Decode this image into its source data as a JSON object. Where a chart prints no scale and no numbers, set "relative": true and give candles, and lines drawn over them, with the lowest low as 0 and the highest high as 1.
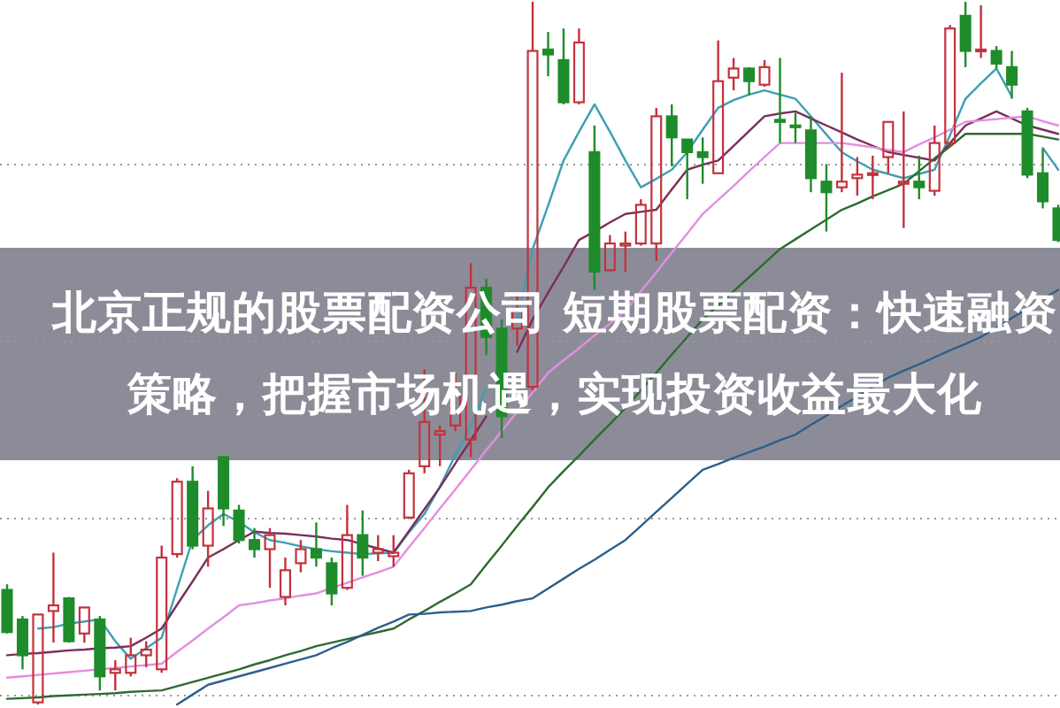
{
  "chart_data": {
    "type": "candlestick",
    "title": "北京正规的股票配资公司 短期股票配资：快速融资策略，把握市场机遇，实现投资收益最大化",
    "relative": true,
    "tick_labels": false,
    "grid": "y",
    "categories": [
      null,
      null,
      null,
      null,
      null,
      null,
      null,
      null,
      null,
      null,
      null,
      null,
      null,
      null,
      null,
      null,
      null,
      null,
      null,
      null,
      null,
      null,
      null,
      null,
      null,
      null,
      null,
      null,
      null,
      null,
      null,
      null,
      null,
      null,
      null,
      null,
      null,
      null,
      null,
      null,
      null,
      null,
      null,
      null,
      null,
      null,
      null,
      null,
      null,
      null,
      null,
      null,
      null,
      null,
      null,
      null,
      null,
      null,
      null,
      null,
      null,
      null,
      null,
      null,
      null,
      null,
      null,
      null,
      null
    ],
    "ohlc": [
      [
        0.163,
        0.171,
        0.101,
        0.103
      ],
      [
        0.121,
        0.126,
        0.05,
        0.07
      ],
      [
        0.003,
        0.128,
        0,
        0.128
      ],
      [
        0.133,
        0.216,
        0.088,
        0.141
      ],
      [
        0.151,
        0.153,
        0.088,
        0.09
      ],
      [
        0.101,
        0.138,
        0.088,
        0.138
      ],
      [
        0.121,
        0.126,
        0.02,
        0.04
      ],
      [
        0.045,
        0.063,
        0.02,
        0.05
      ],
      [
        0.045,
        0.095,
        0.04,
        0.07
      ],
      [
        0.07,
        0.09,
        0.053,
        0.078
      ],
      [
        0.05,
        0.226,
        0.045,
        0.209
      ],
      [
        0.214,
        0.322,
        0.209,
        0.317
      ],
      [
        0.317,
        0.339,
        0.221,
        0.226
      ],
      [
        0.226,
        0.304,
        0.196,
        0.279
      ],
      [
        0.352,
        0.354,
        0.254,
        0.279
      ],
      [
        0.276,
        0.284,
        0.229,
        0.234
      ],
      [
        0.234,
        0.251,
        0.209,
        0.221
      ],
      [
        0.221,
        0.251,
        0.166,
        0.241
      ],
      [
        0.153,
        0.209,
        0.141,
        0.191
      ],
      [
        0.201,
        0.234,
        0.188,
        0.221
      ],
      [
        0.221,
        0.259,
        0.196,
        0.209
      ],
      [
        0.201,
        0.209,
        0.141,
        0.158
      ],
      [
        0.166,
        0.284,
        0.163,
        0.241
      ],
      [
        0.241,
        0.276,
        0.183,
        0.209
      ],
      [
        0.216,
        0.241,
        0.204,
        0.221
      ],
      [
        0.211,
        0.241,
        0.196,
        0.216
      ],
      [
        0.266,
        0.334,
        0.264,
        0.329
      ],
      [
        0.339,
        0.477,
        0.329,
        0.402
      ],
      [
        0.384,
        0.397,
        0.339,
        0.389
      ],
      [
        0.397,
        0.472,
        0.389,
        0.44
      ],
      [
        0.377,
        0.628,
        0.352,
        0.593
      ],
      [
        0.593,
        0.606,
        0.497,
        0.523
      ],
      [
        0.535,
        0.548,
        0.379,
        0.41
      ],
      [
        0.535,
        0.585,
        0.51,
        0.56
      ],
      [
        0.452,
        1,
        0.447,
        0.93
      ],
      [
        0.932,
        0.957,
        0.894,
        0.925
      ],
      [
        0.917,
        0.962,
        0.854,
        0.857
      ],
      [
        0.857,
        0.962,
        0.854,
        0.942
      ],
      [
        0.786,
        0.824,
        0.59,
        0.616
      ],
      [
        0.618,
        0.668,
        0.616,
        0.656
      ],
      [
        0.653,
        0.673,
        0.616,
        0.656
      ],
      [
        0.656,
        0.719,
        0.653,
        0.711
      ],
      [
        0.656,
        0.849,
        0.631,
        0.837
      ],
      [
        0.837,
        0.854,
        0.766,
        0.807
      ],
      [
        0.804,
        0.804,
        0.719,
        0.786
      ],
      [
        0.786,
        0.807,
        0.741,
        0.779
      ],
      [
        0.756,
        0.945,
        0.756,
        0.887
      ],
      [
        0.892,
        0.92,
        0.874,
        0.905
      ],
      [
        0.905,
        0.907,
        0.867,
        0.887
      ],
      [
        0.882,
        0.917,
        0.879,
        0.907
      ],
      [
        0.832,
        0.92,
        0.799,
        0.829
      ],
      [
        0.824,
        0.842,
        0.799,
        0.822
      ],
      [
        0.817,
        0.837,
        0.729,
        0.749
      ],
      [
        0.744,
        0.769,
        0.673,
        0.729
      ],
      [
        0.736,
        0.899,
        0.729,
        0.744
      ],
      [
        0.749,
        0.779,
        0.724,
        0.754
      ],
      [
        0.754,
        0.781,
        0.719,
        0.756
      ],
      [
        0.779,
        0.829,
        0.756,
        0.829
      ],
      [
        0.741,
        0.844,
        0.678,
        0.744
      ],
      [
        0.744,
        0.781,
        0.719,
        0.736
      ],
      [
        0.731,
        0.824,
        0.724,
        0.799
      ],
      [
        0.799,
        0.967,
        0.794,
        0.962
      ],
      [
        0.98,
        1,
        0.907,
        0.93
      ],
      [
        0.93,
        0.995,
        0.92,
        0.932
      ],
      [
        0.93,
        0.937,
        0.905,
        0.912
      ],
      [
        0.907,
        0.93,
        0.862,
        0.882
      ],
      [
        0.844,
        0.849,
        0.749,
        0.754
      ],
      [
        0.756,
        0.791,
        0.706,
        0.716
      ],
      [
        0.706,
        0.711,
        0.658,
        0.661
      ]
    ],
    "colors": [
      "#1e8c2a",
      "#1e8c2a",
      "#c3323c",
      "#c3323c",
      "#1e8c2a",
      "#c3323c",
      "#1e8c2a",
      "#c3323c",
      "#c3323c",
      "#c3323c",
      "#c3323c",
      "#c3323c",
      "#1e8c2a",
      "#c3323c",
      "#1e8c2a",
      "#1e8c2a",
      "#1e8c2a",
      "#c3323c",
      "#c3323c",
      "#c3323c",
      "#1e8c2a",
      "#1e8c2a",
      "#c3323c",
      "#1e8c2a",
      "#c3323c",
      "#c3323c",
      "#c3323c",
      "#c3323c",
      "#c3323c",
      "#c3323c",
      "#c3323c",
      "#1e8c2a",
      "#1e8c2a",
      "#c3323c",
      "#c3323c",
      "#1e8c2a",
      "#1e8c2a",
      "#c3323c",
      "#1e8c2a",
      "#c3323c",
      "#c3323c",
      "#c3323c",
      "#c3323c",
      "#1e8c2a",
      "#1e8c2a",
      "#1e8c2a",
      "#c3323c",
      "#c3323c",
      "#1e8c2a",
      "#c3323c",
      "#1e8c2a",
      "#1e8c2a",
      "#1e8c2a",
      "#1e8c2a",
      "#c3323c",
      "#c3323c",
      "#c3323c",
      "#c3323c",
      "#c3323c",
      "#1e8c2a",
      "#c3323c",
      "#c3323c",
      "#1e8c2a",
      "#c3323c",
      "#1e8c2a",
      "#1e8c2a",
      "#1e8c2a",
      "#1e8c2a",
      "#1e8c2a"
    ],
    "series": [
      {
        "type": "line",
        "color": "#3c9fb4",
        "values": [
          null,
          null,
          0.108,
          0.11,
          0.115,
          0.118,
          0.121,
          0.09,
          0.065,
          0.08,
          0.095,
          0.165,
          0.234,
          0.255,
          0.271,
          0.26,
          0.245,
          0.234,
          0.23,
          0.225,
          0.221,
          0.218,
          0.216,
          0.214,
          0.215,
          0.216,
          0.245,
          0.271,
          0.31,
          0.355,
          0.397,
          0.45,
          null,
          0.548,
          0.648,
          0.71,
          0.774,
          0.815,
          0.854,
          0.815,
          0.774,
          0.736,
          0.748,
          0.761,
          0.786,
          0.818,
          0.849,
          0.86,
          0.868,
          0.874,
          0.868,
          0.862,
          0.837,
          0.811,
          0.786,
          0.773,
          0.761,
          0.755,
          0.749,
          0.755,
          0.761,
          0.81,
          0.862,
          0.884,
          0.905,
          0.865,
          null,
          0.792,
          0.761
        ]
      },
      {
        "type": "line",
        "color": "#7a2e5c",
        "values": [
          0.07,
          0.072,
          0.073,
          0.075,
          0.077,
          0.078,
          0.08,
          0.081,
          0.083,
          0.095,
          0.108,
          0.142,
          0.175,
          0.209,
          0.221,
          0.234,
          0.246,
          0.244,
          0.243,
          0.241,
          0.239,
          0.236,
          0.234,
          0.228,
          0.222,
          0.216,
          0.247,
          0.278,
          0.309,
          0.343,
          0.376,
          0.41,
          null,
          0.502,
          0.548,
          0.586,
          0.623,
          0.661,
          0.673,
          0.686,
          0.698,
          0.701,
          0.704,
          0.733,
          0.761,
          0.768,
          0.774,
          0.795,
          0.816,
          0.837,
          0.841,
          0.844,
          0.834,
          0.824,
          0.814,
          0.804,
          0.795,
          0.786,
          0.782,
          0.778,
          0.774,
          0.799,
          0.824,
          0.834,
          0.844,
          0.834,
          0.824,
          0.818,
          0.812
        ]
      },
      {
        "type": "line",
        "color": "#e48ede",
        "values": [
          0.038,
          0.04,
          0.042,
          0.044,
          0.046,
          0.048,
          0.05,
          0.052,
          0.054,
          0.056,
          0.058,
          0.075,
          0.091,
          0.108,
          0.124,
          0.141,
          0.144,
          0.148,
          0.151,
          0.155,
          0.158,
          0.166,
          0.173,
          0.181,
          0.188,
          0.196,
          0.224,
          0.251,
          0.279,
          0.306,
          0.334,
          0.362,
          0.389,
          0.417,
          0.444,
          0.472,
          0.49,
          0.507,
          0.525,
          0.542,
          0.56,
          0.588,
          0.615,
          0.643,
          0.67,
          0.698,
          0.718,
          0.738,
          0.759,
          0.779,
          0.799,
          0.799,
          0.799,
          0.799,
          0.799,
          0.796,
          0.793,
          0.789,
          0.786,
          0.797,
          0.807,
          0.818,
          0.829,
          0.831,
          0.833,
          0.835,
          0.837,
          0.83,
          0.824
        ]
      },
      {
        "type": "line",
        "color": "#2f6a30",
        "values": [
          0.008,
          0.009,
          0.01,
          0.012,
          0.013,
          0.014,
          0.015,
          0.016,
          0.018,
          0.019,
          0.02,
          0.026,
          0.032,
          0.038,
          0.044,
          0.05,
          0.057,
          0.063,
          0.07,
          0.076,
          0.083,
          0.088,
          0.093,
          0.098,
          0.103,
          0.108,
          0.121,
          0.133,
          0.146,
          0.158,
          0.171,
          0.199,
          0.226,
          0.254,
          0.281,
          0.309,
          0.332,
          0.354,
          0.377,
          0.399,
          0.422,
          0.447,
          0.472,
          0.498,
          0.523,
          0.548,
          0.568,
          0.588,
          0.608,
          0.628,
          0.648,
          0.662,
          0.676,
          0.69,
          0.704,
          0.713,
          0.723,
          0.732,
          0.741,
          0.759,
          0.777,
          0.794,
          0.812,
          0.812,
          0.812,
          0.812,
          0.812,
          0.808,
          0.804
        ]
      },
      {
        "type": "line",
        "color": "#2e5f8a",
        "values": [
          null,
          null,
          null,
          null,
          null,
          null,
          null,
          null,
          null,
          null,
          null,
          0,
          0.014,
          0.028,
          0.034,
          0.04,
          0.046,
          0.052,
          0.058,
          0.064,
          0.07,
          0.08,
          0.089,
          0.099,
          0.109,
          0.118,
          0.128,
          0.129,
          0.131,
          0.132,
          0.133,
          0.138,
          0.142,
          0.147,
          0.151,
          0.165,
          0.179,
          0.193,
          0.206,
          0.22,
          0.234,
          0.254,
          0.274,
          0.294,
          0.314,
          0.334,
          0.342,
          0.351,
          0.359,
          0.367,
          0.376,
          0.384,
          0.398,
          0.411,
          0.425,
          0.438,
          0.452,
          0.465,
          0.475,
          0.484,
          0.494,
          0.504,
          0.513,
          0.523,
          0.536,
          0.55,
          0.563,
          0.577,
          0.59
        ]
      }
    ]
  }
}
